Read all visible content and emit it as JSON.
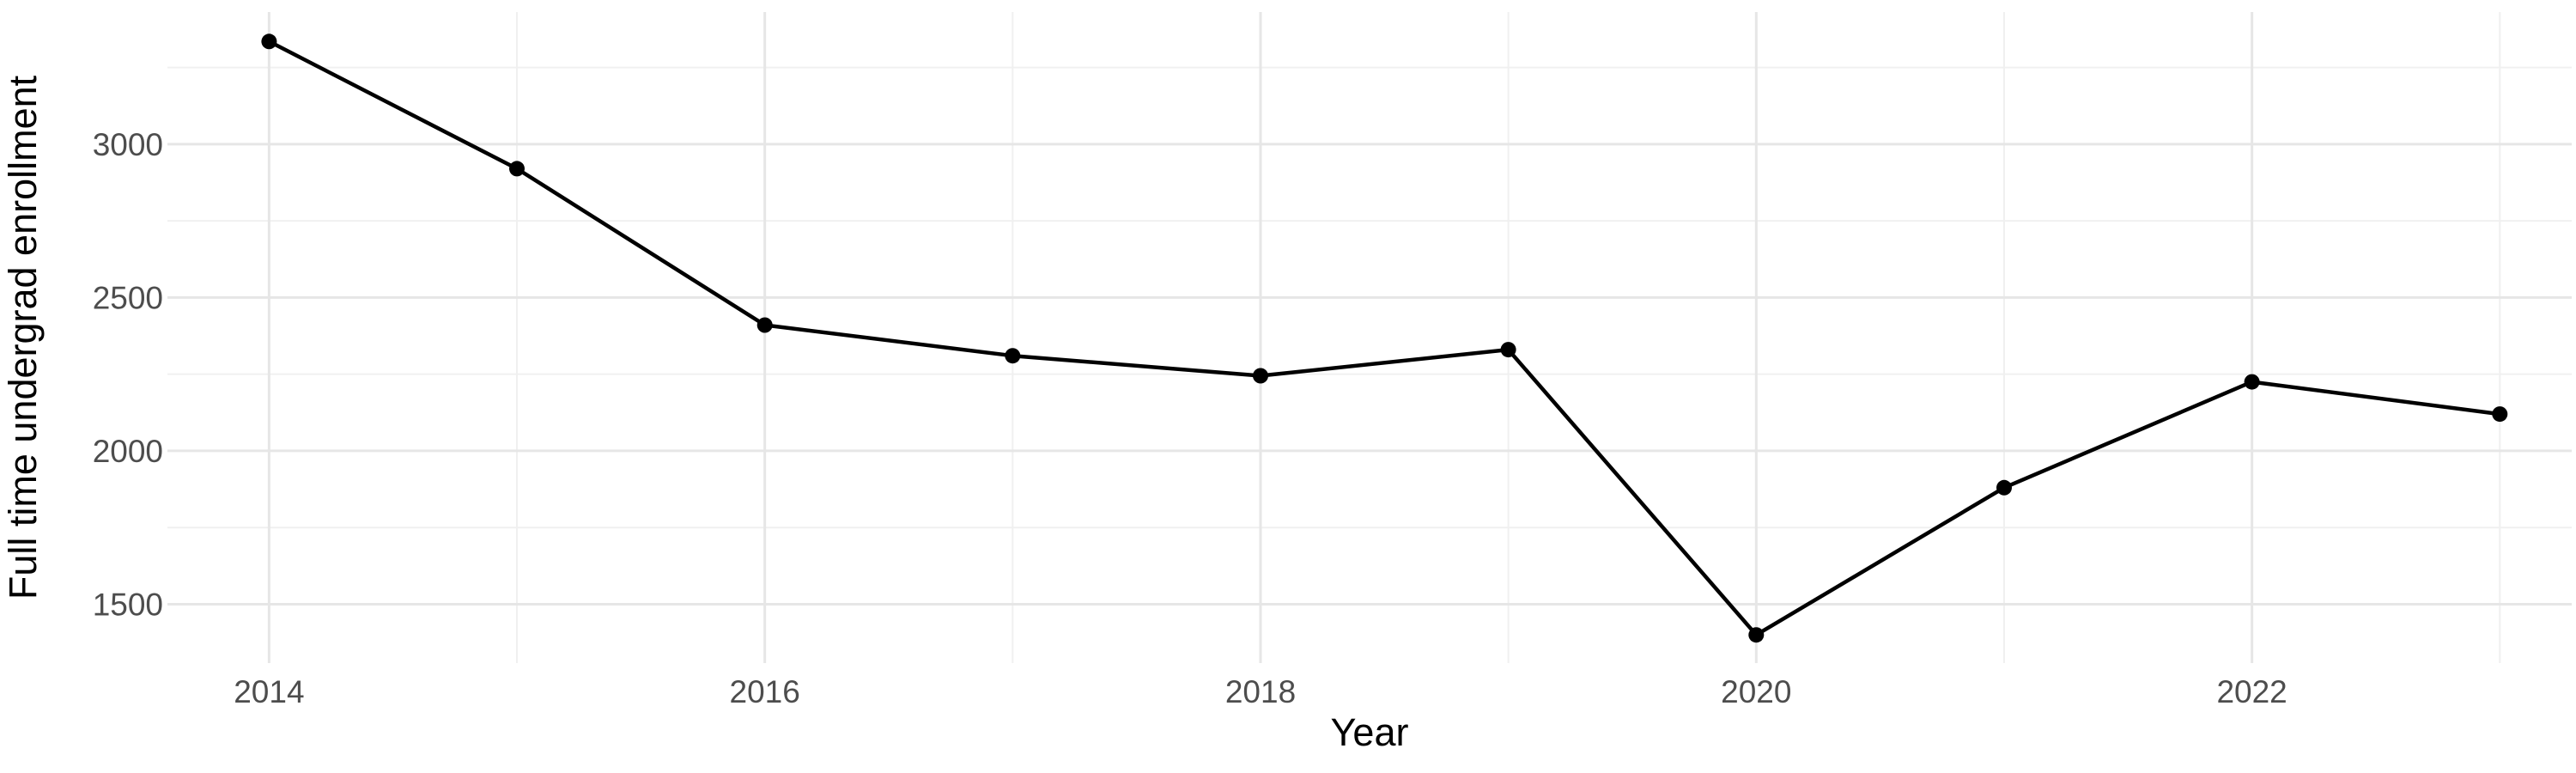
{
  "chart_data": {
    "type": "line",
    "title": "",
    "xlabel": "Year",
    "ylabel": "Full time undergrad enrollment",
    "series_name": "Full time undergrad enrollment",
    "x": [
      2014,
      2015,
      2016,
      2017,
      2018,
      2019,
      2020,
      2021,
      2022,
      2023
    ],
    "values": [
      3335,
      2920,
      2410,
      2310,
      2245,
      2330,
      1400,
      1880,
      2225,
      2120
    ],
    "xlim": [
      2013.59,
      2023.29
    ],
    "ylim": [
      1308,
      3431
    ],
    "x_ticks_major": [
      2014,
      2016,
      2018,
      2020,
      2022
    ],
    "x_gridlines_minor": [
      2015,
      2017,
      2019,
      2021,
      2023
    ],
    "y_ticks_major": [
      3000,
      2500,
      2000,
      1500
    ],
    "y_gridlines_minor": [
      3250,
      2750,
      2250,
      1750
    ],
    "grid": "on",
    "legend": "none",
    "colors": {
      "line": "#000000",
      "point": "#000000",
      "grid_major": "#E6E6E6",
      "grid_minor": "#F0F0F0",
      "tick_label": "#4D4D4D",
      "axis_title": "#000000",
      "background": "#FFFFFF"
    },
    "style": {
      "line_width": 4.5,
      "point_radius": 9,
      "grid_major_width": 3,
      "grid_minor_width": 2
    }
  }
}
